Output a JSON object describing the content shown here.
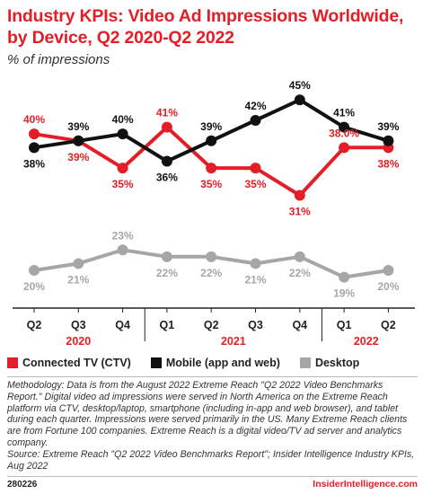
{
  "header": {
    "title": "Industry KPIs: Video Ad Impressions Worldwide, by Device, Q2 2020-Q2 2022",
    "subtitle": "% of impressions"
  },
  "colors": {
    "ctv": "#e31e26",
    "mobile": "#111111",
    "desktop": "#a6a6a6",
    "year_label": "#e31e26"
  },
  "chart_data": {
    "type": "line",
    "title": "Industry KPIs: Video Ad Impressions Worldwide, by Device, Q2 2020-Q2 2022",
    "subtitle": "% of impressions",
    "categories": [
      "Q2",
      "Q3",
      "Q4",
      "Q1",
      "Q2",
      "Q3",
      "Q4",
      "Q1",
      "Q2"
    ],
    "year_groups": [
      {
        "year": "2020",
        "quarters": [
          "Q2",
          "Q3",
          "Q4"
        ]
      },
      {
        "year": "2021",
        "quarters": [
          "Q1",
          "Q2",
          "Q3",
          "Q4"
        ]
      },
      {
        "year": "2022",
        "quarters": [
          "Q1",
          "Q2"
        ]
      }
    ],
    "series": [
      {
        "name": "Connected TV (CTV)",
        "values": [
          40,
          39,
          35,
          41,
          35,
          35,
          31,
          38,
          38
        ],
        "labels": [
          "40%",
          "39%",
          "35%",
          "41%",
          "35%",
          "35%",
          "31%",
          "38.0%",
          "38%"
        ]
      },
      {
        "name": "Mobile (app and web)",
        "values": [
          38,
          39,
          40,
          36,
          39,
          42,
          45,
          41,
          39
        ],
        "labels": [
          "38%",
          "39%",
          "40%",
          "36%",
          "39%",
          "42%",
          "45%",
          "41%",
          "39%"
        ]
      },
      {
        "name": "Desktop",
        "values": [
          20,
          21,
          23,
          22,
          22,
          21,
          22,
          19,
          20
        ],
        "labels": [
          "20%",
          "21%",
          "23%",
          "22%",
          "22%",
          "21%",
          "22%",
          "19%",
          "20%"
        ]
      }
    ],
    "ylim": [
      15,
      47
    ],
    "legend": "bottom",
    "grid": false
  },
  "legend": {
    "items": [
      {
        "label": "Connected TV (CTV)"
      },
      {
        "label": "Mobile (app and web)"
      },
      {
        "label": "Desktop"
      }
    ]
  },
  "notes": {
    "methodology": "Methodology: Data is from the August 2022 Extreme Reach \"Q2 2022 Video Benchmarks Report.\" Digital video ad impressions were served in North America on the Extreme Reach platform via CTV, desktop/laptop, smartphone (including in-app and web browser), and tablet during each quarter. Impressions were served primarily in the US. Many Extreme Reach clients are from Fortune 100 companies. Extreme Reach is a digital video/TV ad server and analytics company.",
    "source": "Source: Extreme Reach \"Q2 2022 Video Benchmarks Report\"; Insider Intelligence Industry KPIs, Aug 2022"
  },
  "footer": {
    "id": "280226",
    "brand": "InsiderIntelligence.com"
  }
}
